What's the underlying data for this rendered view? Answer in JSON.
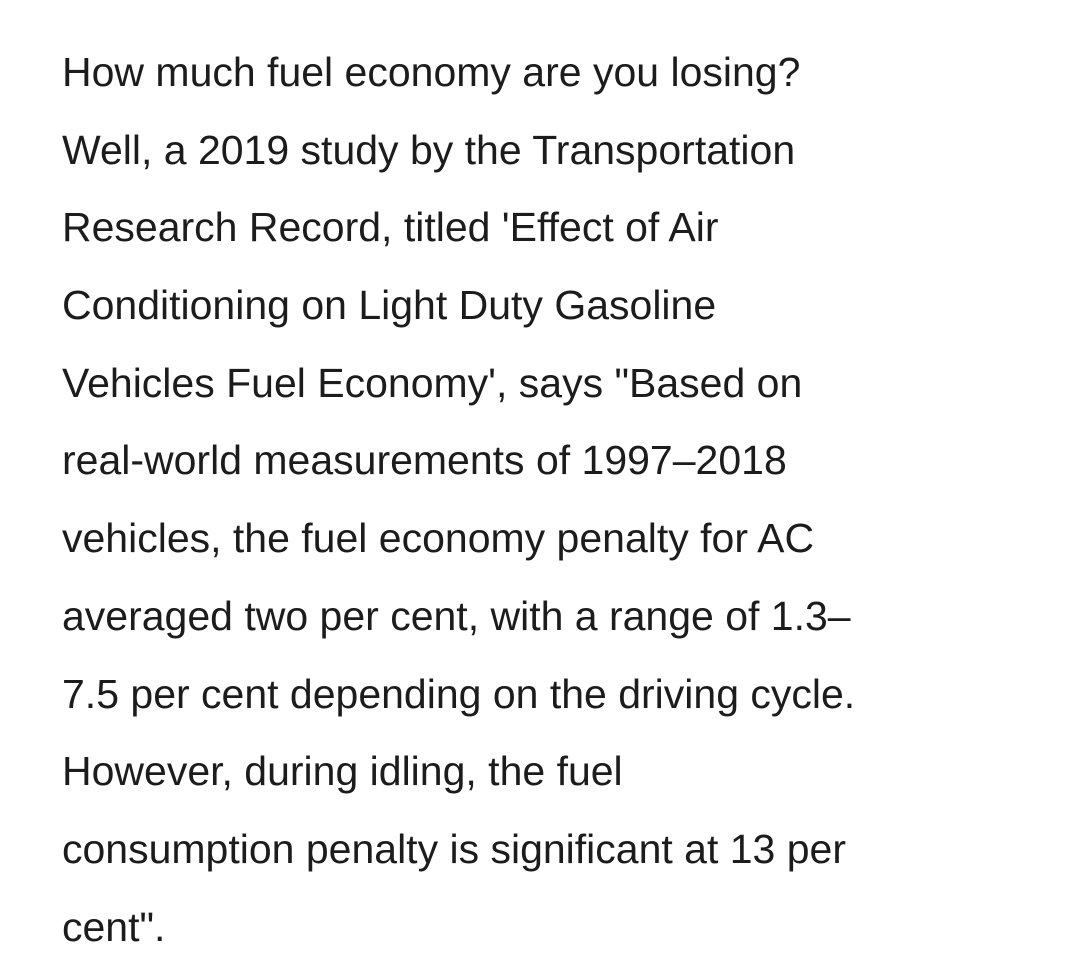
{
  "paragraph": {
    "lines": [
      "How much fuel economy are you losing?",
      "Well, a 2019 study by the Transportation",
      "Research Record, titled 'Effect of Air",
      "Conditioning on Light Duty Gasoline",
      "Vehicles Fuel Economy', says \"Based on",
      "real-world measurements of 1997–2018",
      "vehicles, the fuel economy penalty for AC",
      "averaged two per cent, with a range of 1.3–",
      "7.5 per cent depending on the driving cycle.",
      "However, during idling, the fuel",
      "consumption penalty is significant at 13 per",
      "cent\"."
    ]
  }
}
